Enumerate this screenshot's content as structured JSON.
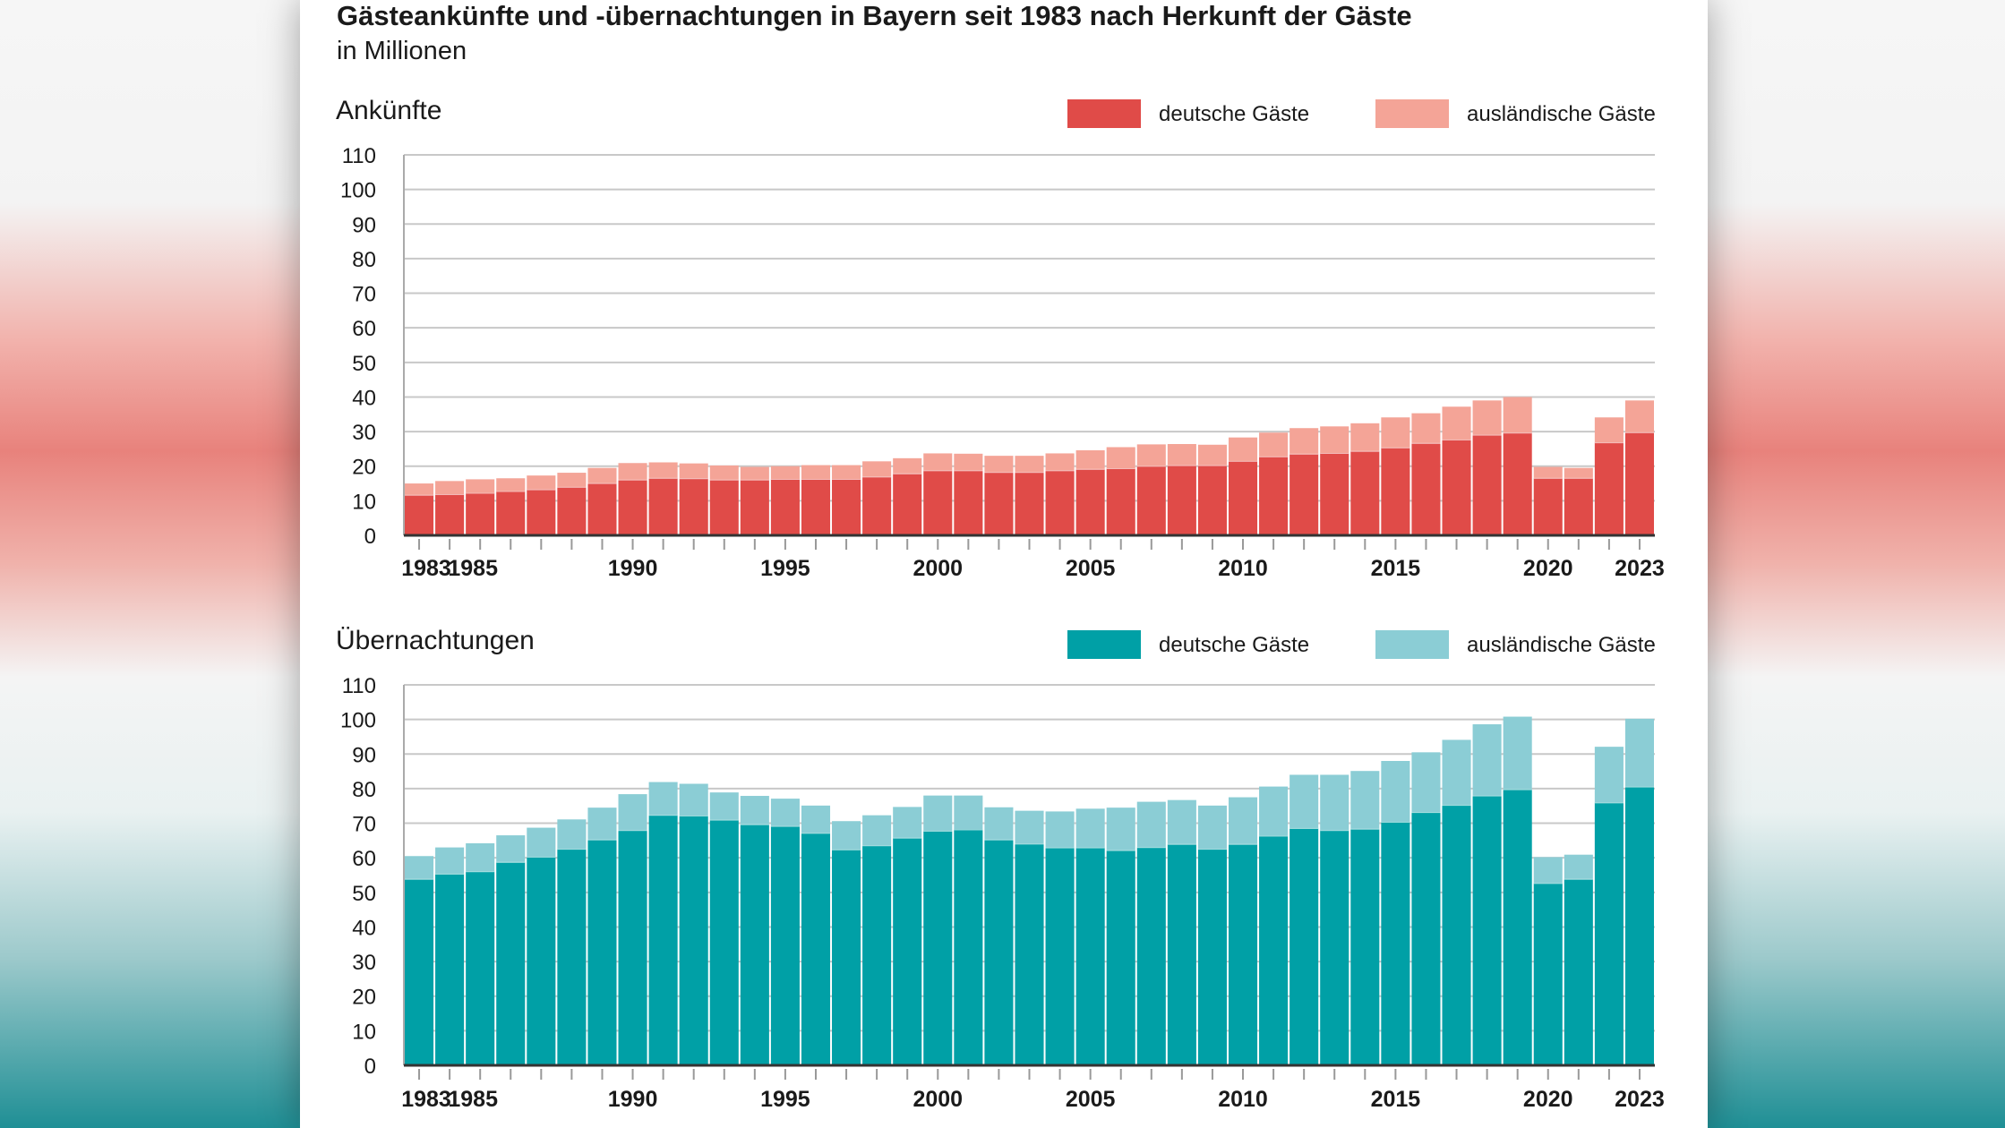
{
  "title": "Gästeankünfte und -übernachtungen in Bayern seit 1983 nach Herkunft der Gäste",
  "subtitle": "in Millionen",
  "chart_data": [
    {
      "type": "bar",
      "stacked": true,
      "title": "Ankünfte",
      "x": [
        1983,
        1984,
        1985,
        1986,
        1987,
        1988,
        1989,
        1990,
        1991,
        1992,
        1993,
        1994,
        1995,
        1996,
        1997,
        1998,
        1999,
        2000,
        2001,
        2002,
        2003,
        2004,
        2005,
        2006,
        2007,
        2008,
        2009,
        2010,
        2011,
        2012,
        2013,
        2014,
        2015,
        2016,
        2017,
        2018,
        2019,
        2020,
        2021,
        2022,
        2023
      ],
      "xtick_labels": [
        "1983",
        "1985",
        "1990",
        "1995",
        "2000",
        "2005",
        "2010",
        "2015",
        "2020",
        "2023"
      ],
      "ylim": [
        0,
        110
      ],
      "yticks": [
        0,
        10,
        20,
        30,
        40,
        50,
        60,
        70,
        80,
        90,
        100,
        110
      ],
      "grid": true,
      "legend_position": "top-right",
      "series": [
        {
          "name": "deutsche Gäste",
          "color": "#e04b48",
          "values": [
            11.7,
            11.9,
            12.3,
            12.8,
            13.3,
            14.0,
            15.1,
            16.1,
            16.6,
            16.5,
            16.1,
            16.1,
            16.3,
            16.3,
            16.3,
            17.0,
            17.9,
            18.8,
            18.8,
            18.3,
            18.3,
            18.8,
            19.2,
            19.4,
            20.1,
            20.3,
            20.3,
            21.5,
            22.8,
            23.6,
            23.8,
            24.4,
            25.4,
            26.7,
            27.7,
            29.1,
            29.7,
            16.6,
            16.6,
            26.9,
            29.8
          ]
        },
        {
          "name": "ausländische Gäste",
          "color": "#f4a497",
          "values": [
            3.3,
            3.8,
            3.9,
            3.7,
            4.0,
            4.1,
            4.4,
            4.8,
            4.5,
            4.3,
            4.1,
            3.7,
            3.7,
            4.0,
            4.0,
            4.4,
            4.4,
            4.9,
            4.8,
            4.7,
            4.7,
            4.9,
            5.4,
            6.1,
            6.2,
            6.1,
            5.9,
            6.8,
            6.9,
            7.4,
            7.7,
            8.0,
            8.7,
            8.6,
            9.5,
            9.9,
            10.3,
            3.2,
            2.9,
            7.2,
            9.2
          ]
        }
      ]
    },
    {
      "type": "bar",
      "stacked": true,
      "title": "Übernachtungen",
      "x": [
        1983,
        1984,
        1985,
        1986,
        1987,
        1988,
        1989,
        1990,
        1991,
        1992,
        1993,
        1994,
        1995,
        1996,
        1997,
        1998,
        1999,
        2000,
        2001,
        2002,
        2003,
        2004,
        2005,
        2006,
        2007,
        2008,
        2009,
        2010,
        2011,
        2012,
        2013,
        2014,
        2015,
        2016,
        2017,
        2018,
        2019,
        2020,
        2021,
        2022,
        2023
      ],
      "xtick_labels": [
        "1983",
        "1985",
        "1990",
        "1995",
        "2000",
        "2005",
        "2010",
        "2015",
        "2020",
        "2023"
      ],
      "ylim": [
        0,
        110
      ],
      "yticks": [
        0,
        10,
        20,
        30,
        40,
        50,
        60,
        70,
        80,
        90,
        100,
        110
      ],
      "grid": true,
      "legend_position": "top-right",
      "series": [
        {
          "name": "deutsche Gäste",
          "color": "#00a0a6",
          "values": [
            53.9,
            55.4,
            56.1,
            58.8,
            60.3,
            62.6,
            65.3,
            68.0,
            72.4,
            72.2,
            71.0,
            69.7,
            69.2,
            67.2,
            62.4,
            63.6,
            65.8,
            67.8,
            68.2,
            65.3,
            64.1,
            63.0,
            63.0,
            62.2,
            63.1,
            64.0,
            62.6,
            64.0,
            66.4,
            68.6,
            68.0,
            68.4,
            70.4,
            73.2,
            75.3,
            78.0,
            79.8,
            52.7,
            53.9,
            76.0,
            80.6
          ]
        },
        {
          "name": "ausländische Gäste",
          "color": "#8bcdd5",
          "values": [
            6.6,
            7.6,
            8.1,
            7.7,
            8.4,
            8.5,
            9.2,
            10.4,
            9.5,
            9.2,
            7.9,
            8.2,
            7.9,
            7.9,
            8.2,
            8.7,
            8.9,
            10.2,
            9.8,
            9.3,
            9.5,
            10.4,
            11.2,
            12.3,
            13.1,
            12.7,
            12.5,
            13.5,
            14.2,
            15.4,
            16.0,
            16.7,
            17.6,
            17.3,
            18.8,
            20.6,
            21.0,
            7.5,
            7.0,
            16.1,
            19.6
          ]
        }
      ]
    }
  ]
}
